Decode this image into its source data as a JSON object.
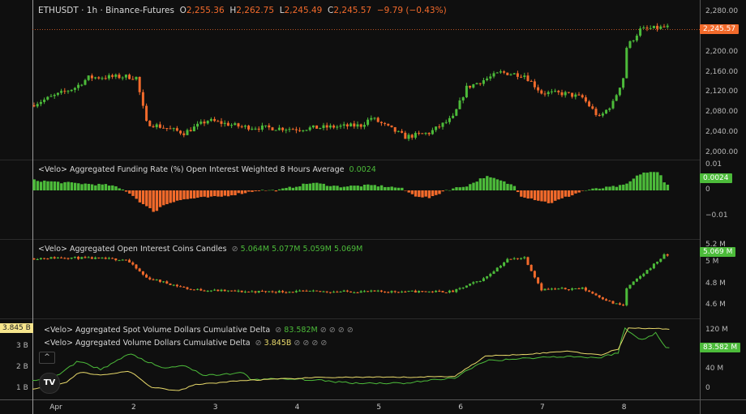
{
  "header": {
    "symbol": "ETHUSDT · 1h · Binance-Futures",
    "o_label": "O",
    "open": "2,255.36",
    "h_label": "H",
    "high": "2,262.75",
    "l_label": "L",
    "low": "2,245.49",
    "c_label": "C",
    "close": "2,245.57",
    "change": "−9.79 (−0.43%)"
  },
  "colors": {
    "up": "#4cbb3a",
    "down": "#f26a2b",
    "yellow": "#e8d96a",
    "bg": "#0f0f0f"
  },
  "price": {
    "axis": [
      "2,280.00",
      "2,200.00",
      "2,160.00",
      "2,120.00",
      "2,080.00",
      "2,040.00",
      "2,000.00"
    ],
    "axis_values": [
      2280,
      2200,
      2160,
      2120,
      2080,
      2040,
      2000
    ],
    "last_tag": "2,245.57",
    "path": [
      [
        0,
        2095
      ],
      [
        13,
        2130
      ],
      [
        17,
        2150
      ],
      [
        28,
        2152
      ],
      [
        31,
        2150
      ],
      [
        34,
        2060
      ],
      [
        45,
        2040
      ],
      [
        52,
        2065
      ],
      [
        62,
        2052
      ],
      [
        78,
        2048
      ],
      [
        97,
        2055
      ],
      [
        100,
        2070
      ],
      [
        110,
        2032
      ],
      [
        117,
        2040
      ],
      [
        124,
        2070
      ],
      [
        128,
        2130
      ],
      [
        138,
        2160
      ],
      [
        145,
        2155
      ],
      [
        150,
        2120
      ],
      [
        157,
        2118
      ],
      [
        162,
        2110
      ],
      [
        167,
        2070
      ],
      [
        171,
        2100
      ],
      [
        174,
        2150
      ],
      [
        175,
        2210
      ],
      [
        179,
        2245
      ],
      [
        186,
        2250
      ]
    ]
  },
  "funding": {
    "legend": "<Velo> Aggregated Funding Rate (%) Open Interest Weighted 8 Hours Average",
    "value": "0.0024",
    "axis": [
      "0.01",
      "0",
      "−0.01"
    ],
    "axis_values": [
      0.01,
      0,
      -0.01
    ],
    "last_tag": "0.0024",
    "path": [
      [
        0,
        0.004
      ],
      [
        10,
        0.003
      ],
      [
        23,
        0.002
      ],
      [
        28,
        -0.0005
      ],
      [
        33,
        -0.006
      ],
      [
        36,
        -0.0085
      ],
      [
        38,
        -0.006
      ],
      [
        42,
        -0.004
      ],
      [
        48,
        -0.003
      ],
      [
        55,
        -0.0025
      ],
      [
        62,
        -0.001
      ],
      [
        66,
        0
      ],
      [
        72,
        0
      ],
      [
        82,
        0.003
      ],
      [
        90,
        0.0015
      ],
      [
        100,
        0.002
      ],
      [
        108,
        0.001
      ],
      [
        112,
        -0.002
      ],
      [
        117,
        -0.003
      ],
      [
        121,
        0
      ],
      [
        128,
        0.002
      ],
      [
        133,
        0.0055
      ],
      [
        137,
        0.004
      ],
      [
        142,
        0.0015
      ],
      [
        143,
        -0.002
      ],
      [
        152,
        -0.005
      ],
      [
        158,
        -0.002
      ],
      [
        162,
        0
      ],
      [
        168,
        0.001
      ],
      [
        174,
        0.002
      ],
      [
        179,
        0.007
      ],
      [
        184,
        0.007
      ],
      [
        186,
        0.0024
      ]
    ]
  },
  "oi": {
    "legend": "<Velo> Aggregated Open Interest Coins Candles",
    "values": [
      "5.064M",
      "5.077M",
      "5.059M",
      "5.069M"
    ],
    "axis": [
      "5.2 M",
      "5 M",
      "4.8 M",
      "4.6 M"
    ],
    "axis_values": [
      5.2,
      5.0,
      4.8,
      4.6
    ],
    "last_tag": "5.069 M",
    "path": [
      [
        0,
        5.04
      ],
      [
        10,
        5.05
      ],
      [
        28,
        5.03
      ],
      [
        34,
        4.86
      ],
      [
        47,
        4.75
      ],
      [
        62,
        4.73
      ],
      [
        110,
        4.73
      ],
      [
        124,
        4.73
      ],
      [
        133,
        4.85
      ],
      [
        140,
        5.03
      ],
      [
        145,
        5.05
      ],
      [
        150,
        4.75
      ],
      [
        162,
        4.76
      ],
      [
        171,
        4.62
      ],
      [
        174,
        4.6
      ],
      [
        175,
        4.76
      ],
      [
        186,
        5.069
      ]
    ]
  },
  "cvd": {
    "spot_legend": "<Velo> Aggregated Spot Volume Dollars Cumulative Delta",
    "spot_value": "83.582M",
    "total_legend": "<Velo> Aggregated Volume Dollars Cumulative Delta",
    "total_value": "3.845B",
    "right_axis": [
      "120 M",
      "40 M",
      "0"
    ],
    "right_axis_values": [
      120,
      40,
      0
    ],
    "left_axis": [
      "3 B",
      "2 B",
      "1 B"
    ],
    "left_axis_values": [
      3,
      2,
      1
    ],
    "right_tag": "83.582 M",
    "left_tag": "3.845 B",
    "collapse_label": "^",
    "logo": "TV",
    "spot_path": [
      [
        0,
        17
      ],
      [
        8,
        30
      ],
      [
        13.6,
        58
      ],
      [
        20,
        40
      ],
      [
        28.6,
        72
      ],
      [
        32,
        62
      ],
      [
        38,
        42
      ],
      [
        45,
        48
      ],
      [
        50,
        27
      ],
      [
        62,
        33
      ],
      [
        64,
        20
      ],
      [
        78.6,
        20
      ],
      [
        95,
        12
      ],
      [
        109.5,
        12
      ],
      [
        124,
        23
      ],
      [
        133,
        58
      ],
      [
        150,
        65
      ],
      [
        157,
        67
      ],
      [
        166.7,
        64
      ],
      [
        172,
        75
      ],
      [
        173.8,
        125
      ],
      [
        178.6,
        100
      ],
      [
        183,
        115
      ],
      [
        186,
        83.6
      ]
    ],
    "total_path": [
      [
        0,
        1.0
      ],
      [
        10,
        1.3
      ],
      [
        13.6,
        1.8
      ],
      [
        20,
        1.65
      ],
      [
        28.6,
        1.85
      ],
      [
        34.5,
        1.1
      ],
      [
        43,
        0.9
      ],
      [
        47.6,
        1.2
      ],
      [
        62,
        1.4
      ],
      [
        85.7,
        1.55
      ],
      [
        109.5,
        1.55
      ],
      [
        124,
        1.6
      ],
      [
        133,
        2.55
      ],
      [
        150,
        2.7
      ],
      [
        157,
        2.8
      ],
      [
        166.7,
        2.6
      ],
      [
        172,
        2.9
      ],
      [
        175,
        3.9
      ],
      [
        186,
        3.845
      ]
    ]
  },
  "time_axis": [
    {
      "label": "Apr",
      "hour": 6
    },
    {
      "label": "2",
      "hour": 30
    },
    {
      "label": "3",
      "hour": 54
    },
    {
      "label": "4",
      "hour": 78
    },
    {
      "label": "5",
      "hour": 102
    },
    {
      "label": "6",
      "hour": 126
    },
    {
      "label": "7",
      "hour": 150
    },
    {
      "label": "8",
      "hour": 174
    }
  ]
}
